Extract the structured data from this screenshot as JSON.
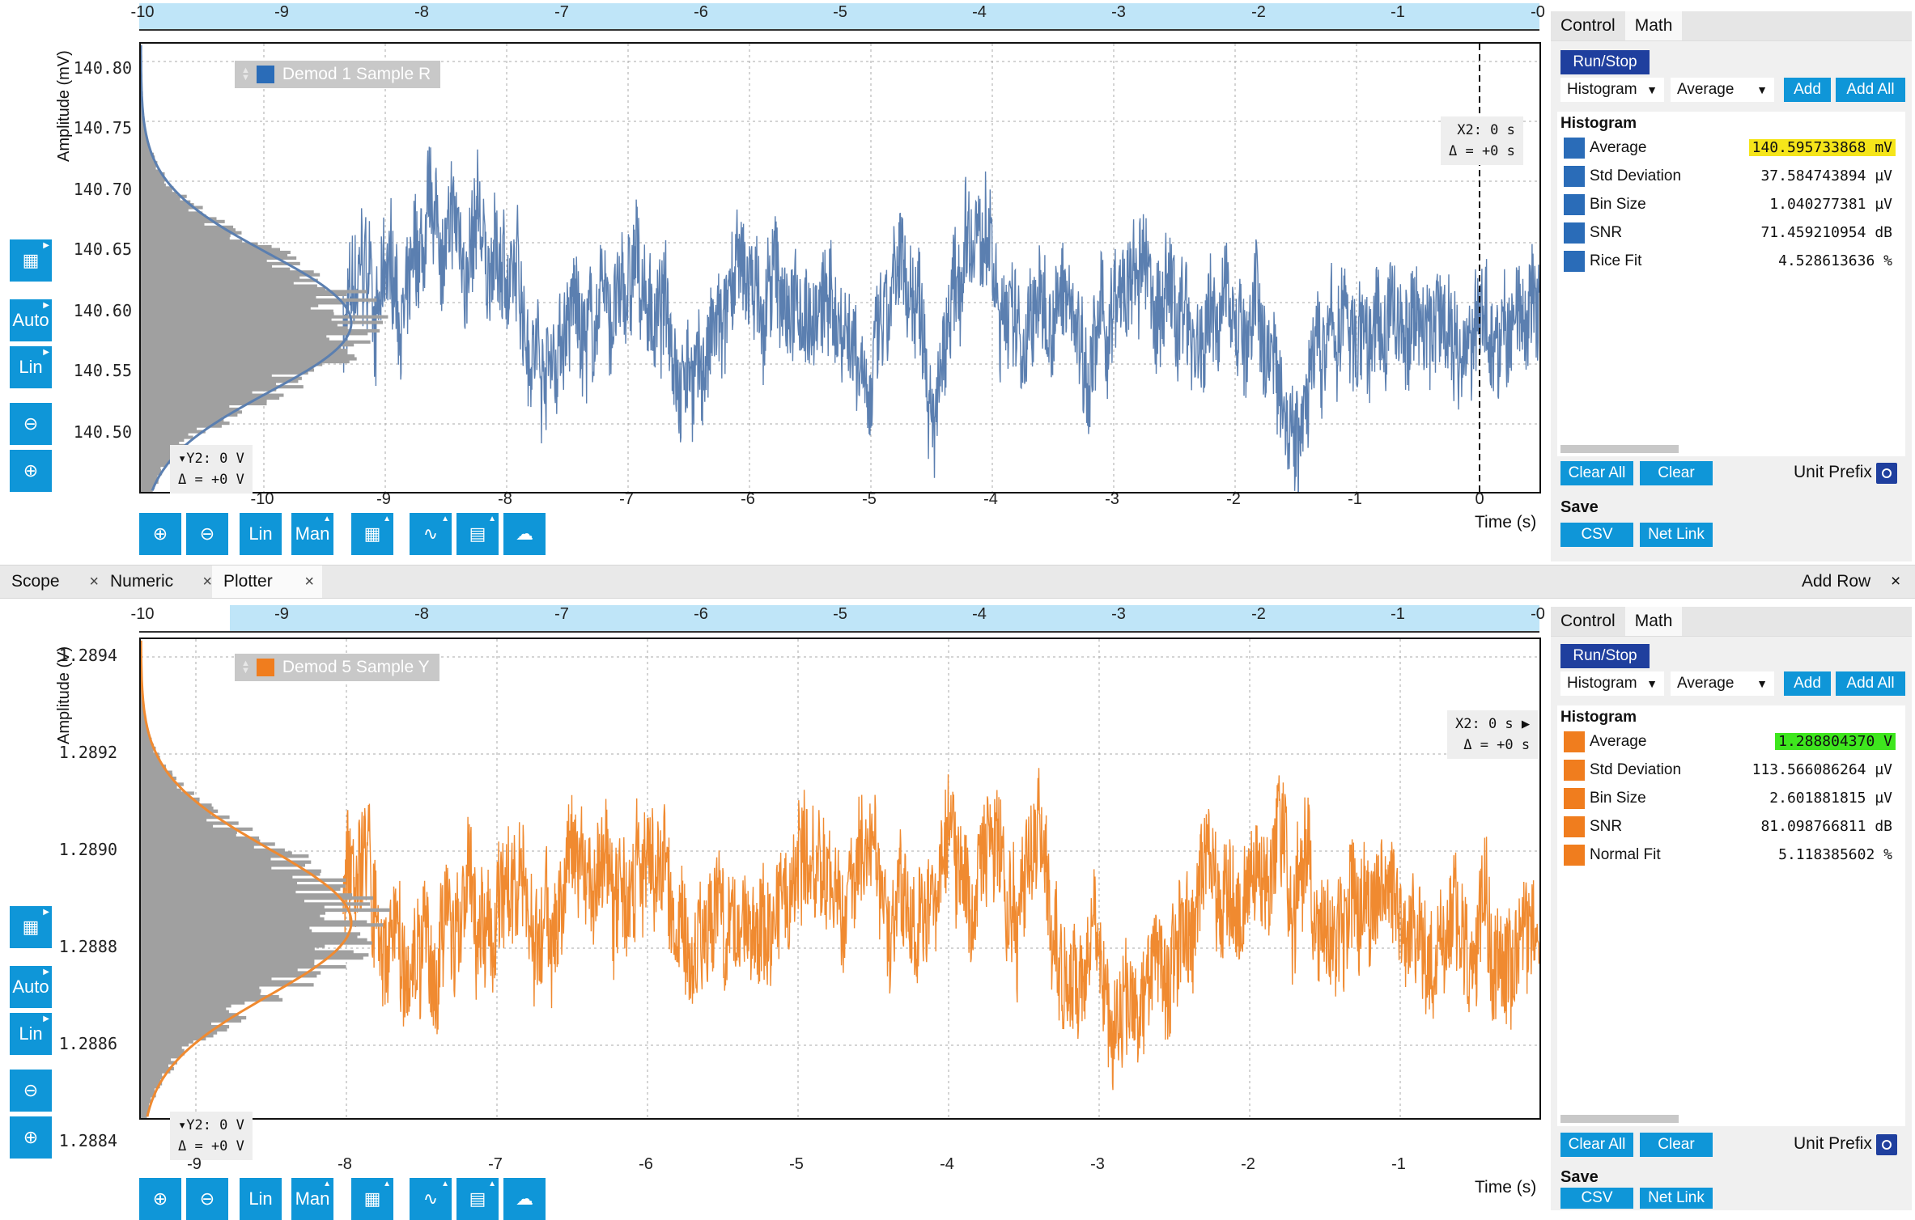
{
  "panels": [
    {
      "id": "top",
      "color": "#5b7fb0",
      "swatch": "#2a6cb8",
      "ylabel": "Amplitude (mV)",
      "yticks": [
        "140.80",
        "140.75",
        "140.70",
        "140.65",
        "140.60",
        "140.55",
        "140.50"
      ],
      "xticks": [
        "-10",
        "-9",
        "-8",
        "-7",
        "-6",
        "-5",
        "-4",
        "-3",
        "-2",
        "-1",
        "0"
      ],
      "top_ticks": [
        "-10",
        "-9",
        "-8",
        "-7",
        "-6",
        "-5",
        "-4",
        "-3",
        "-2",
        "-1",
        "-0"
      ],
      "xlabel": "Time (s)",
      "legend": "Demod 1 Sample R",
      "cursor_x": "X2: 0 s",
      "cursor_dx": "Δ = +0 s",
      "cursor_y": "▾Y2: 0 V",
      "cursor_dy": "Δ = +0 V",
      "left_btns": [
        "Auto",
        "Lin"
      ],
      "bottom_btns": [
        "Lin",
        "Man"
      ],
      "side": {
        "tabs": [
          "Control",
          "Math"
        ],
        "run": "Run/Stop",
        "select1": "Histogram",
        "select2": "Average",
        "add": "Add",
        "add_all": "Add All",
        "header": "Histogram",
        "rows": [
          {
            "label": "Average",
            "value": "140.595733868 mV",
            "hl": "#f5e51a"
          },
          {
            "label": "Std Deviation",
            "value": "37.584743894 µV",
            "hl": ""
          },
          {
            "label": "Bin Size",
            "value": "1.040277381 µV",
            "hl": ""
          },
          {
            "label": "SNR",
            "value": "71.459210954 dB",
            "hl": ""
          },
          {
            "label": "Rice Fit",
            "value": "4.528613636 %",
            "hl": ""
          }
        ],
        "clear_all": "Clear All",
        "clear": "Clear",
        "unit_prefix": "Unit Prefix",
        "save": "Save",
        "csv": "CSV",
        "net_link": "Net Link"
      }
    },
    {
      "id": "bottom",
      "color": "#f08a30",
      "swatch": "#f07d1e",
      "ylabel": "Amplitude (V)",
      "yticks": [
        "1.2894",
        "1.2892",
        "1.2890",
        "1.2888",
        "1.2886",
        "1.2884"
      ],
      "xticks": [
        "-9",
        "-8",
        "-7",
        "-6",
        "-5",
        "-4",
        "-3",
        "-2",
        "-1"
      ],
      "top_ticks": [
        "-10",
        "-9",
        "-8",
        "-7",
        "-6",
        "-5",
        "-4",
        "-3",
        "-2",
        "-1",
        "-0"
      ],
      "xlabel": "Time (s)",
      "legend": "Demod 5 Sample Y",
      "cursor_x": "X2: 0 s ▶",
      "cursor_dx": "Δ = +0 s",
      "cursor_y": "▾Y2: 0 V",
      "cursor_dy": "Δ = +0 V",
      "left_btns": [
        "Auto",
        "Lin"
      ],
      "bottom_btns": [
        "Lin",
        "Man"
      ],
      "side": {
        "tabs": [
          "Control",
          "Math"
        ],
        "run": "Run/Stop",
        "select1": "Histogram",
        "select2": "Average",
        "add": "Add",
        "add_all": "Add All",
        "header": "Histogram",
        "rows": [
          {
            "label": "Average",
            "value": "1.288804370 V",
            "hl": "#3ee61e"
          },
          {
            "label": "Std Deviation",
            "value": "113.566086264 µV",
            "hl": ""
          },
          {
            "label": "Bin Size",
            "value": "2.601881815 µV",
            "hl": ""
          },
          {
            "label": "SNR",
            "value": "81.098766811 dB",
            "hl": ""
          },
          {
            "label": "Normal Fit",
            "value": "5.118385602 %",
            "hl": ""
          }
        ],
        "clear_all": "Clear All",
        "clear": "Clear",
        "unit_prefix": "Unit Prefix",
        "save": "Save",
        "csv": "CSV",
        "net_link": "Net Link"
      }
    }
  ],
  "window_tabs": [
    {
      "label": "Scope",
      "close": "×"
    },
    {
      "label": "Numeric",
      "close": "×"
    },
    {
      "label": "Plotter",
      "close": "×"
    }
  ],
  "add_row": "Add Row",
  "add_row_close": "×",
  "chart_data": [
    {
      "type": "line",
      "series": [
        {
          "name": "Demod 1 Sample R",
          "mean": 140.5957,
          "std": 0.0376
        }
      ],
      "xlabel": "Time (s)",
      "ylabel": "Amplitude (mV)",
      "xlim": [
        -10,
        0
      ],
      "ylim": [
        140.46,
        140.82
      ]
    },
    {
      "type": "line",
      "series": [
        {
          "name": "Demod 5 Sample Y",
          "mean": 1.2888,
          "std": 0.000114
        }
      ],
      "xlabel": "Time (s)",
      "ylabel": "Amplitude (V)",
      "xlim": [
        -9.3,
        0.1
      ],
      "ylim": [
        1.28835,
        1.28945
      ]
    }
  ]
}
